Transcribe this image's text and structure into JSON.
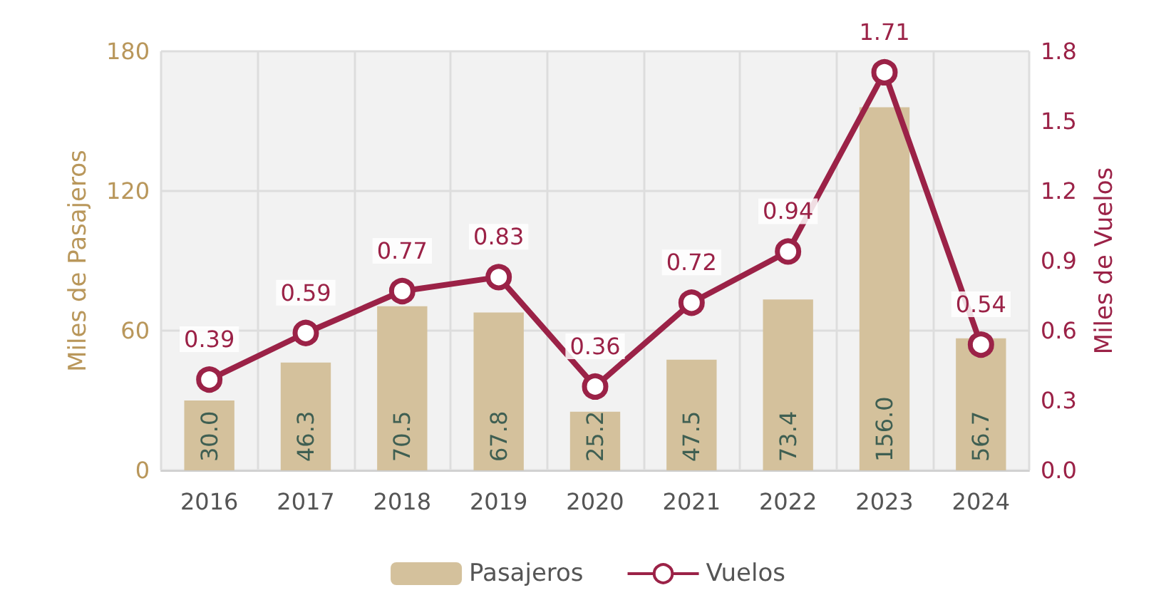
{
  "chart_data": {
    "type": "bar",
    "categories": [
      "2016",
      "2017",
      "2018",
      "2019",
      "2020",
      "2021",
      "2022",
      "2023",
      "2024"
    ],
    "ylabel": "Miles de Pasajeros",
    "y2label": "Miles de Vuelos",
    "ylim": [
      0,
      180
    ],
    "yticks": [
      0,
      60,
      120,
      180
    ],
    "y2lim": [
      0,
      1.8
    ],
    "y2ticks": [
      {
        "value": 0,
        "label": "0.0"
      },
      0.3,
      0.6,
      0.9,
      1.2,
      1.5,
      1.8
    ],
    "series": [
      {
        "name": "Pasajeros",
        "color": "#d4c19c",
        "values": [
          30.0,
          46.3,
          70.5,
          67.8,
          25.2,
          47.5,
          73.4,
          156.0,
          56.7
        ],
        "value_labels": [
          "30.0",
          "46.3",
          "70.5",
          "67.8",
          "25.2",
          "47.5",
          "73.4",
          "156.0",
          "56.7"
        ]
      },
      {
        "name": "Vuelos",
        "type": "line",
        "axis": "y2",
        "color": "#9b2247",
        "marker": "circle",
        "values": [
          0.39,
          0.59,
          0.77,
          0.83,
          0.36,
          0.72,
          0.94,
          1.71,
          0.54
        ]
      }
    ],
    "data_labels": true,
    "grid": true,
    "legend": "bottom"
  }
}
